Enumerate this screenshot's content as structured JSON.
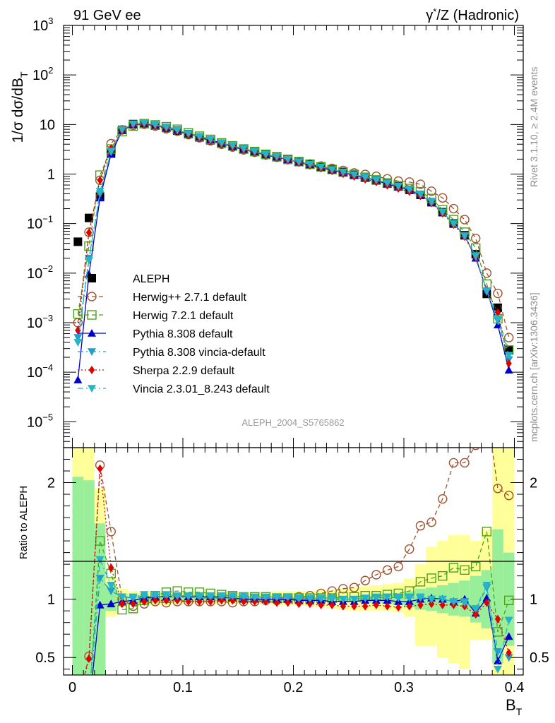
{
  "header": {
    "left": "91 GeV ee",
    "right_prefix": "γ",
    "right_sup": "*",
    "right_suffix": "/Z (Hadronic)"
  },
  "side_text": {
    "rivet": "Rivet 3.1.10, ≥ 2.4M events",
    "mcplots": "mcplots.cern.ch [arXiv:1306.3436]"
  },
  "watermark": "ALEPH_2004_S5765862",
  "chart_data": {
    "type": "scatter",
    "ylabel_main": "1/σ  dσ/dB",
    "ylabel_main_sub": "T",
    "ylabel_ratio": "Ratio to ALEPH",
    "xlabel": "B",
    "xlabel_sub": "T",
    "xlim": [
      -0.008,
      0.408
    ],
    "ylim_main": [
      3e-06,
      1000
    ],
    "y_scale_main": "log",
    "ylim_ratio": [
      0.35,
      2.3
    ],
    "xticks": [
      "0",
      "0.1",
      "0.2",
      "0.3",
      "0.4"
    ],
    "yticks_main": [
      {
        "base": "10",
        "exp": "3"
      },
      {
        "base": "10",
        "exp": "2"
      },
      {
        "base": "10",
        "exp": ""
      },
      {
        "base": "1",
        "exp": ""
      },
      {
        "base": "10",
        "exp": "−1"
      },
      {
        "base": "10",
        "exp": "−2"
      },
      {
        "base": "10",
        "exp": "−3"
      },
      {
        "base": "10",
        "exp": "−4"
      },
      {
        "base": "10",
        "exp": "−5"
      }
    ],
    "yticks_ratio": [
      "2",
      "1",
      "0.5"
    ],
    "legend_position": "lower-left",
    "series": [
      {
        "name": "ALEPH",
        "color": "#000000",
        "marker": "square-filled",
        "line": "none",
        "x": [
          0.005,
          0.015,
          0.025,
          0.035,
          0.045,
          0.055,
          0.065,
          0.075,
          0.085,
          0.095,
          0.105,
          0.115,
          0.125,
          0.135,
          0.145,
          0.155,
          0.165,
          0.175,
          0.185,
          0.195,
          0.205,
          0.215,
          0.225,
          0.235,
          0.245,
          0.255,
          0.265,
          0.275,
          0.285,
          0.295,
          0.305,
          0.315,
          0.325,
          0.335,
          0.345,
          0.355,
          0.365,
          0.375,
          0.385,
          0.395
        ],
        "y": [
          0.043,
          0.13,
          0.35,
          2.6,
          7.8,
          10.2,
          10.4,
          9.5,
          8.5,
          7.5,
          6.4,
          5.5,
          4.8,
          4.1,
          3.6,
          3.15,
          2.8,
          2.45,
          2.2,
          1.95,
          1.75,
          1.55,
          1.38,
          1.22,
          1.08,
          0.96,
          0.84,
          0.74,
          0.64,
          0.56,
          0.48,
          0.38,
          0.27,
          0.17,
          0.1,
          0.058,
          0.024,
          0.0038,
          0.002,
          0.00028
        ]
      },
      {
        "name": "Herwig++ 2.7.1 default",
        "color": "#a0522d",
        "marker": "circle-open",
        "line": "dashed",
        "x": [
          0.005,
          0.015,
          0.025,
          0.035,
          0.045,
          0.055,
          0.065,
          0.075,
          0.085,
          0.095,
          0.105,
          0.115,
          0.125,
          0.135,
          0.145,
          0.155,
          0.165,
          0.175,
          0.185,
          0.195,
          0.205,
          0.215,
          0.225,
          0.235,
          0.245,
          0.255,
          0.265,
          0.275,
          0.285,
          0.295,
          0.305,
          0.315,
          0.325,
          0.335,
          0.345,
          0.355,
          0.365,
          0.375,
          0.385,
          0.395
        ],
        "y": [
          0.001,
          0.067,
          0.75,
          4.1,
          7.8,
          9.6,
          10.1,
          9.3,
          8.2,
          7.3,
          6.25,
          5.4,
          4.7,
          4.0,
          3.5,
          3.08,
          2.75,
          2.42,
          2.18,
          1.95,
          1.78,
          1.6,
          1.45,
          1.3,
          1.18,
          1.05,
          0.98,
          0.9,
          0.8,
          0.72,
          0.69,
          0.62,
          0.45,
          0.33,
          0.2,
          0.12,
          0.05,
          0.01,
          0.0039,
          0.0005
        ],
        "ratio": [
          null,
          0.51,
          2.15,
          1.58,
          1.0,
          0.94,
          0.96,
          0.98,
          0.97,
          0.98,
          0.98,
          0.98,
          0.98,
          0.98,
          0.97,
          0.98,
          0.98,
          0.99,
          0.99,
          1.0,
          1.02,
          1.03,
          1.05,
          1.07,
          1.09,
          1.1,
          1.16,
          1.21,
          1.25,
          1.28,
          1.43,
          1.63,
          1.66,
          1.86,
          2.17,
          2.17,
          2.32,
          2.62,
          1.95,
          1.89
        ]
      },
      {
        "name": "Herwig 7.2.1 default",
        "color": "#4aa31a",
        "marker": "square-open",
        "line": "dashed",
        "x": [
          0.005,
          0.015,
          0.025,
          0.035,
          0.045,
          0.055,
          0.065,
          0.075,
          0.085,
          0.095,
          0.105,
          0.115,
          0.125,
          0.135,
          0.145,
          0.155,
          0.165,
          0.175,
          0.185,
          0.195,
          0.205,
          0.215,
          0.225,
          0.235,
          0.245,
          0.255,
          0.265,
          0.275,
          0.285,
          0.295,
          0.305,
          0.315,
          0.325,
          0.335,
          0.345,
          0.355,
          0.365,
          0.375,
          0.385,
          0.395
        ],
        "y": [
          0.0015,
          0.035,
          0.95,
          3.2,
          7.2,
          9.3,
          10.4,
          9.8,
          9.0,
          8.0,
          6.8,
          5.8,
          5.0,
          4.25,
          3.7,
          3.2,
          2.85,
          2.5,
          2.23,
          1.98,
          1.78,
          1.58,
          1.4,
          1.24,
          1.1,
          0.98,
          0.86,
          0.76,
          0.66,
          0.58,
          0.51,
          0.44,
          0.32,
          0.19,
          0.12,
          0.067,
          0.032,
          0.006,
          0.0012,
          0.00028
        ],
        "ratio": [
          null,
          0.1,
          1.5,
          1.22,
          0.91,
          0.92,
          0.99,
          1.03,
          1.06,
          1.07,
          1.06,
          1.06,
          1.05,
          1.04,
          1.03,
          1.02,
          1.02,
          1.02,
          1.01,
          1.01,
          1.01,
          1.01,
          1.01,
          1.01,
          1.02,
          1.02,
          1.03,
          1.03,
          1.04,
          1.05,
          1.07,
          1.15,
          1.18,
          1.2,
          1.27,
          1.25,
          1.28,
          1.58,
          0.72,
          0.99
        ]
      },
      {
        "name": "Pythia 8.308 default",
        "color": "#0000cc",
        "marker": "triangle-up-filled",
        "line": "solid",
        "x": [
          0.005,
          0.015,
          0.025,
          0.035,
          0.045,
          0.055,
          0.065,
          0.075,
          0.085,
          0.095,
          0.105,
          0.115,
          0.125,
          0.135,
          0.145,
          0.155,
          0.165,
          0.175,
          0.185,
          0.195,
          0.205,
          0.215,
          0.225,
          0.235,
          0.245,
          0.255,
          0.265,
          0.275,
          0.285,
          0.295,
          0.305,
          0.315,
          0.325,
          0.335,
          0.345,
          0.355,
          0.365,
          0.375,
          0.385,
          0.395
        ],
        "y": [
          7e-05,
          0.0095,
          0.33,
          2.5,
          7.6,
          10.0,
          10.4,
          9.6,
          8.6,
          7.6,
          6.5,
          5.6,
          4.9,
          4.2,
          3.6,
          3.15,
          2.8,
          2.45,
          2.2,
          1.95,
          1.74,
          1.54,
          1.37,
          1.2,
          1.06,
          0.94,
          0.84,
          0.74,
          0.63,
          0.55,
          0.47,
          0.38,
          0.27,
          0.17,
          0.1,
          0.058,
          0.02,
          0.0045,
          0.0009,
          0.00011
        ],
        "ratio": [
          null,
          0.07,
          0.95,
          0.96,
          0.98,
          0.99,
          1.01,
          1.02,
          1.02,
          1.02,
          1.02,
          1.02,
          1.02,
          1.02,
          1.01,
          1.0,
          1.0,
          1.0,
          1.0,
          1.0,
          0.99,
          0.99,
          0.99,
          0.98,
          0.98,
          0.98,
          0.99,
          0.99,
          0.99,
          0.98,
          0.98,
          1.0,
          1.01,
          1.0,
          0.98,
          1.0,
          0.88,
          1.01,
          0.47,
          0.68
        ]
      },
      {
        "name": "Pythia 8.308 vincia-default",
        "color": "#1ea0c8",
        "marker": "triangle-down-filled",
        "line": "dashdot",
        "x": [
          0.005,
          0.015,
          0.025,
          0.035,
          0.045,
          0.055,
          0.065,
          0.075,
          0.085,
          0.095,
          0.105,
          0.115,
          0.125,
          0.135,
          0.145,
          0.155,
          0.165,
          0.175,
          0.185,
          0.195,
          0.205,
          0.215,
          0.225,
          0.235,
          0.245,
          0.255,
          0.265,
          0.275,
          0.285,
          0.295,
          0.305,
          0.315,
          0.325,
          0.335,
          0.345,
          0.355,
          0.365,
          0.375,
          0.385,
          0.395
        ],
        "y": [
          0.0005,
          0.02,
          0.4,
          2.8,
          7.8,
          10.2,
          10.6,
          9.7,
          8.6,
          7.6,
          6.5,
          5.6,
          4.9,
          4.2,
          3.7,
          3.2,
          2.85,
          2.48,
          2.22,
          1.97,
          1.76,
          1.56,
          1.39,
          1.23,
          1.09,
          0.97,
          0.86,
          0.76,
          0.65,
          0.57,
          0.49,
          0.39,
          0.28,
          0.17,
          0.1,
          0.057,
          0.022,
          0.0042,
          0.0011,
          0.00018
        ],
        "ratio": [
          null,
          0.15,
          1.18,
          1.07,
          1.02,
          1.01,
          1.02,
          1.02,
          1.02,
          1.02,
          1.02,
          1.01,
          1.01,
          1.01,
          1.01,
          1.01,
          1.01,
          1.01,
          1.01,
          1.01,
          1.0,
          1.0,
          1.0,
          1.0,
          1.0,
          1.0,
          1.01,
          1.01,
          1.02,
          1.01,
          1.01,
          1.01,
          1.0,
          1.0,
          0.97,
          0.98,
          0.91,
          1.1,
          0.55,
          0.5
        ]
      },
      {
        "name": "Sherpa 2.2.9 default",
        "color": "#e00000",
        "marker": "diamond-filled",
        "line": "dotted",
        "x": [
          0.005,
          0.015,
          0.025,
          0.035,
          0.045,
          0.055,
          0.065,
          0.075,
          0.085,
          0.095,
          0.105,
          0.115,
          0.125,
          0.135,
          0.145,
          0.155,
          0.165,
          0.175,
          0.185,
          0.195,
          0.205,
          0.215,
          0.225,
          0.235,
          0.245,
          0.255,
          0.265,
          0.275,
          0.285,
          0.295,
          0.305,
          0.315,
          0.325,
          0.335,
          0.345,
          0.355,
          0.365,
          0.375,
          0.385,
          0.395
        ],
        "y": [
          0.0007,
          0.066,
          0.75,
          3.3,
          7.5,
          9.8,
          10.2,
          9.4,
          8.4,
          7.4,
          6.3,
          5.4,
          4.7,
          4.05,
          3.55,
          3.1,
          2.75,
          2.4,
          2.15,
          1.9,
          1.68,
          1.48,
          1.31,
          1.15,
          1.01,
          0.89,
          0.78,
          0.69,
          0.59,
          0.51,
          0.44,
          0.36,
          0.26,
          0.16,
          0.095,
          0.054,
          0.021,
          0.0045,
          0.0016,
          0.00015
        ],
        "ratio": [
          null,
          0.49,
          2.12,
          1.27,
          0.96,
          0.96,
          0.98,
          0.99,
          0.99,
          0.99,
          0.98,
          0.98,
          0.98,
          0.99,
          0.99,
          0.98,
          0.98,
          0.98,
          0.97,
          0.97,
          0.96,
          0.96,
          0.95,
          0.95,
          0.94,
          0.94,
          0.94,
          0.95,
          0.94,
          0.93,
          0.94,
          0.95,
          0.96,
          0.95,
          0.95,
          0.94,
          0.87,
          0.97,
          0.83,
          0.54
        ]
      },
      {
        "name": "Vincia 2.3.01_8.243 default",
        "color": "#28b4c8",
        "marker": "triangle-down-filled",
        "line": "dashdot",
        "x": [
          0.005,
          0.015,
          0.025,
          0.035,
          0.045,
          0.055,
          0.065,
          0.075,
          0.085,
          0.095,
          0.105,
          0.115,
          0.125,
          0.135,
          0.145,
          0.155,
          0.165,
          0.175,
          0.185,
          0.195,
          0.205,
          0.215,
          0.225,
          0.235,
          0.245,
          0.255,
          0.265,
          0.275,
          0.285,
          0.295,
          0.305,
          0.315,
          0.325,
          0.335,
          0.345,
          0.355,
          0.365,
          0.375,
          0.385,
          0.395
        ],
        "y": [
          0.0004,
          0.018,
          0.45,
          2.9,
          7.9,
          10.3,
          10.8,
          9.9,
          8.8,
          7.7,
          6.6,
          5.7,
          5.0,
          4.25,
          3.75,
          3.25,
          2.88,
          2.5,
          2.25,
          1.98,
          1.77,
          1.57,
          1.4,
          1.23,
          1.09,
          0.97,
          0.86,
          0.76,
          0.66,
          0.57,
          0.49,
          0.39,
          0.27,
          0.17,
          0.1,
          0.056,
          0.022,
          0.0044,
          0.0012,
          0.00022
        ],
        "ratio": [
          null,
          0.14,
          1.34,
          1.12,
          1.02,
          1.02,
          1.04,
          1.04,
          1.04,
          1.03,
          1.03,
          1.03,
          1.03,
          1.03,
          1.03,
          1.03,
          1.02,
          1.02,
          1.02,
          1.02,
          1.01,
          1.01,
          1.01,
          1.01,
          1.0,
          1.0,
          1.01,
          1.02,
          1.02,
          1.02,
          1.02,
          1.02,
          1.0,
          1.0,
          0.98,
          0.97,
          0.92,
          1.12,
          0.4,
          0.82
        ]
      }
    ],
    "ratio_bands": {
      "x_edges": [
        0.0,
        0.01,
        0.02,
        0.03,
        0.04,
        0.05,
        0.06,
        0.07,
        0.08,
        0.09,
        0.1,
        0.11,
        0.12,
        0.13,
        0.14,
        0.15,
        0.16,
        0.17,
        0.18,
        0.19,
        0.2,
        0.21,
        0.22,
        0.23,
        0.24,
        0.25,
        0.26,
        0.27,
        0.28,
        0.29,
        0.3,
        0.31,
        0.32,
        0.33,
        0.34,
        0.35,
        0.36,
        0.37,
        0.38,
        0.39,
        0.4
      ],
      "green_low": [
        0.3,
        0.3,
        0.3,
        0.9,
        0.96,
        0.97,
        0.97,
        0.97,
        0.97,
        0.98,
        0.98,
        0.98,
        0.98,
        0.98,
        0.98,
        0.98,
        0.98,
        0.98,
        0.98,
        0.98,
        0.98,
        0.98,
        0.98,
        0.98,
        0.98,
        0.98,
        0.97,
        0.97,
        0.96,
        0.95,
        0.93,
        0.91,
        0.9,
        0.88,
        0.86,
        0.85,
        0.8,
        0.75,
        0.45,
        0.6
      ],
      "green_high": [
        2.05,
        2.02,
        1.65,
        1.12,
        1.04,
        1.03,
        1.03,
        1.03,
        1.03,
        1.02,
        1.02,
        1.02,
        1.02,
        1.02,
        1.02,
        1.02,
        1.02,
        1.02,
        1.02,
        1.02,
        1.02,
        1.02,
        1.02,
        1.02,
        1.02,
        1.02,
        1.03,
        1.03,
        1.04,
        1.05,
        1.07,
        1.09,
        1.1,
        1.12,
        1.14,
        1.16,
        1.2,
        1.25,
        1.6,
        1.4
      ],
      "yellow_low": [
        0.3,
        0.3,
        0.3,
        0.85,
        0.93,
        0.95,
        0.95,
        0.95,
        0.95,
        0.96,
        0.96,
        0.96,
        0.96,
        0.96,
        0.96,
        0.96,
        0.96,
        0.96,
        0.95,
        0.95,
        0.95,
        0.94,
        0.93,
        0.92,
        0.91,
        0.9,
        0.9,
        0.9,
        0.9,
        0.89,
        0.85,
        0.6,
        0.6,
        0.5,
        0.45,
        0.4,
        0.65,
        0.65,
        0.3,
        0.3
      ],
      "yellow_high": [
        2.3,
        2.3,
        1.95,
        1.18,
        1.09,
        1.07,
        1.07,
        1.07,
        1.07,
        1.06,
        1.06,
        1.06,
        1.06,
        1.06,
        1.06,
        1.06,
        1.06,
        1.06,
        1.07,
        1.07,
        1.07,
        1.07,
        1.08,
        1.08,
        1.09,
        1.1,
        1.11,
        1.12,
        1.13,
        1.14,
        1.18,
        1.3,
        1.45,
        1.5,
        1.55,
        1.55,
        1.5,
        1.6,
        2.3,
        2.3
      ]
    }
  }
}
